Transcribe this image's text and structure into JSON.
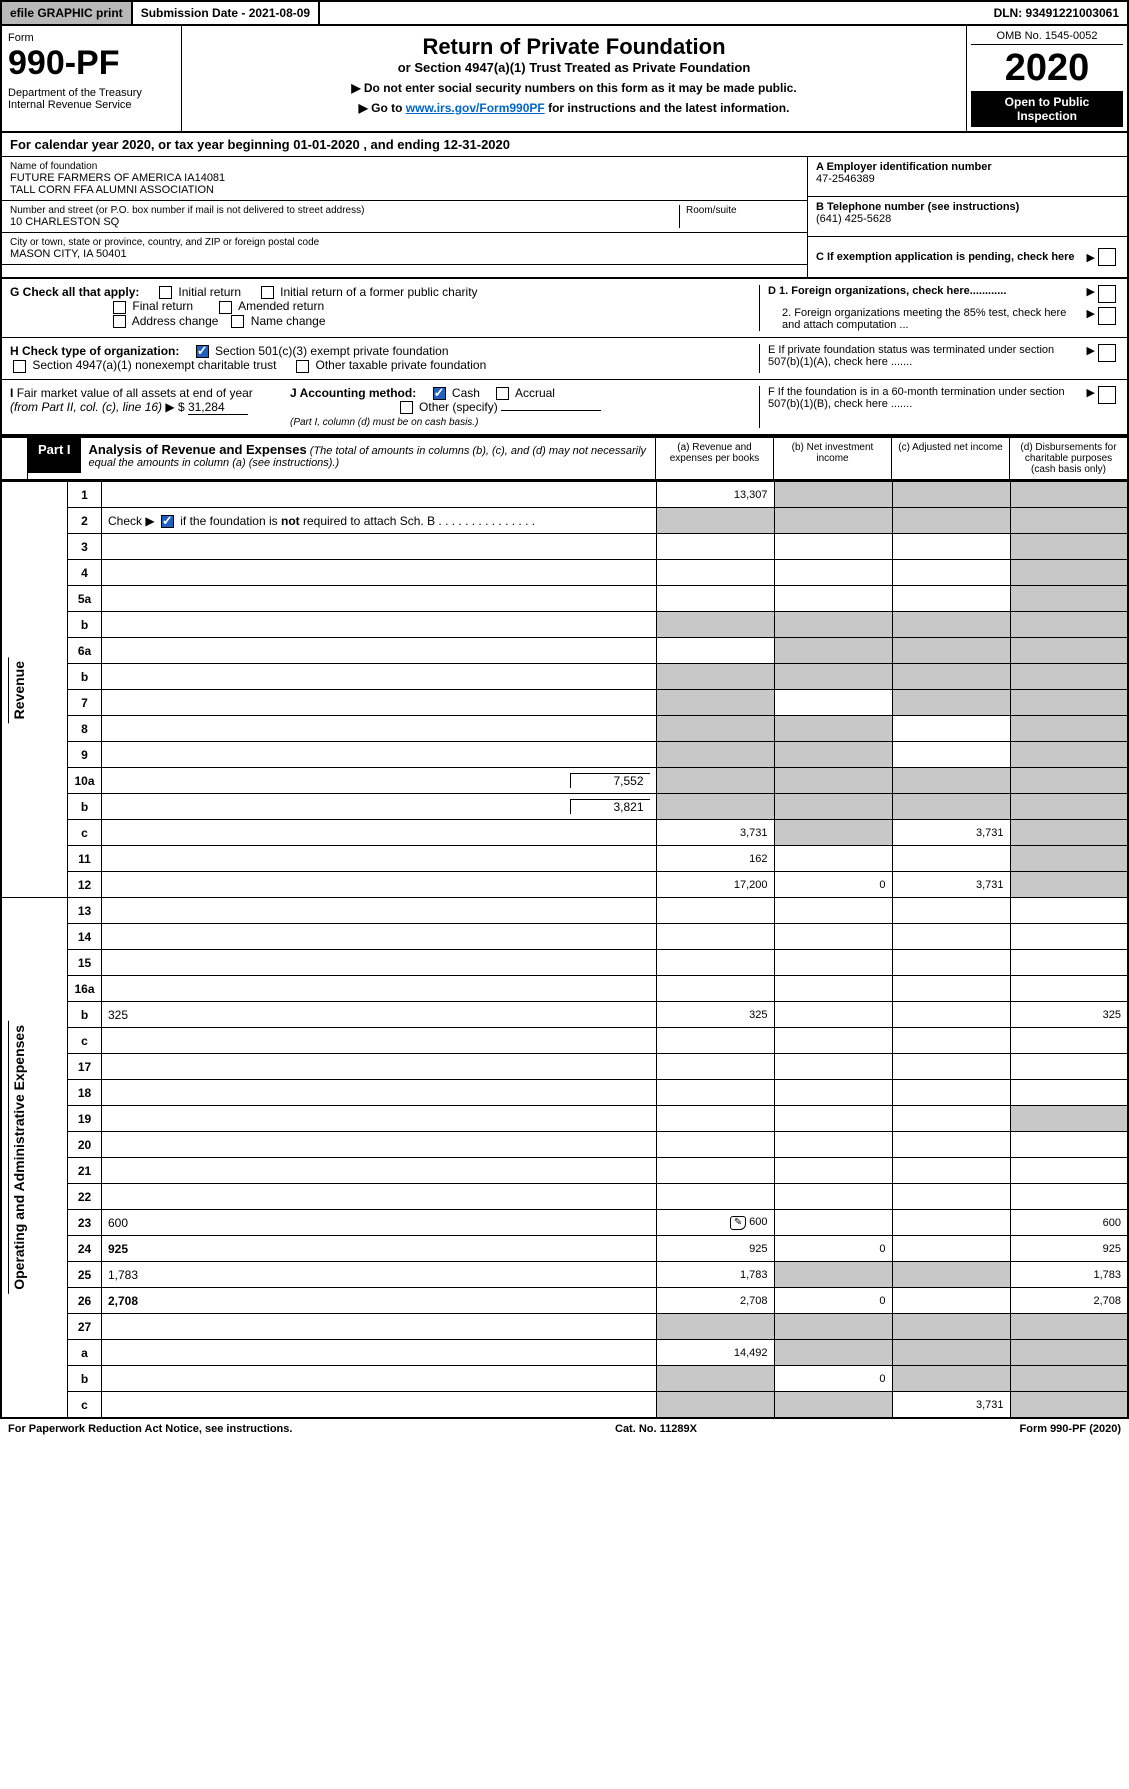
{
  "topbar": {
    "efile": "efile GRAPHIC print",
    "subdate_label": "Submission Date - 2021-08-09",
    "dln": "DLN: 93491221003061"
  },
  "header": {
    "form_label": "Form",
    "form_number": "990-PF",
    "dept": "Department of the Treasury\nInternal Revenue Service",
    "title": "Return of Private Foundation",
    "subtitle": "or Section 4947(a)(1) Trust Treated as Private Foundation",
    "note1": "▶ Do not enter social security numbers on this form as it may be made public.",
    "note2_pre": "▶ Go to ",
    "note2_link": "www.irs.gov/Form990PF",
    "note2_post": " for instructions and the latest information.",
    "omb": "OMB No. 1545-0052",
    "year": "2020",
    "open": "Open to Public Inspection"
  },
  "calyear": "For calendar year 2020, or tax year beginning 01-01-2020           , and ending 12-31-2020",
  "info": {
    "name_lbl": "Name of foundation",
    "name": "FUTURE FARMERS OF AMERICA IA14081\nTALL CORN FFA ALUMNI ASSOCIATION",
    "addr_lbl": "Number and street (or P.O. box number if mail is not delivered to street address)",
    "room_lbl": "Room/suite",
    "addr": "10 CHARLESTON SQ",
    "city_lbl": "City or town, state or province, country, and ZIP or foreign postal code",
    "city": "MASON CITY, IA  50401",
    "a_lbl": "A Employer identification number",
    "a_val": "47-2546389",
    "b_lbl": "B Telephone number (see instructions)",
    "b_val": "(641) 425-5628",
    "c_lbl": "C If exemption application is pending, check here",
    "d1": "D 1. Foreign organizations, check here............",
    "d2": "2. Foreign organizations meeting the 85% test, check here and attach computation ...",
    "e": "E  If private foundation status was terminated under section 507(b)(1)(A), check here .......",
    "f": "F  If the foundation is in a 60-month termination under section 507(b)(1)(B), check here ......."
  },
  "checks": {
    "g_lbl": "G Check all that apply:",
    "g_opts": [
      "Initial return",
      "Initial return of a former public charity",
      "Final return",
      "Amended return",
      "Address change",
      "Name change"
    ],
    "h_lbl": "H Check type of organization:",
    "h_opt1": "Section 501(c)(3) exempt private foundation",
    "h_opt2": "Section 4947(a)(1) nonexempt charitable trust",
    "h_opt3": "Other taxable private foundation",
    "i_lbl": "I Fair market value of all assets at end of year (from Part II, col. (c), line 16) ▶ $",
    "i_val": "31,284",
    "j_lbl": "J Accounting method:",
    "j_cash": "Cash",
    "j_accrual": "Accrual",
    "j_other": "Other (specify)",
    "j_note": "(Part I, column (d) must be on cash basis.)"
  },
  "part1": {
    "label": "Part I",
    "title": "Analysis of Revenue and Expenses",
    "title_note": "(The total of amounts in columns (b), (c), and (d) may not necessarily equal the amounts in column (a) (see instructions).)",
    "col_a": "(a)  Revenue and expenses per books",
    "col_b": "(b)  Net investment income",
    "col_c": "(c)  Adjusted net income",
    "col_d": "(d)  Disbursements for charitable purposes (cash basis only)"
  },
  "sections": {
    "revenue": "Revenue",
    "expenses": "Operating and Administrative Expenses"
  },
  "lines": [
    {
      "n": "1",
      "d": "",
      "a": "13,307",
      "b": "",
      "c": "",
      "shade_b": true,
      "shade_c": true,
      "shade_d": true
    },
    {
      "n": "2",
      "d": "",
      "a": "",
      "b": "",
      "c": "",
      "shade_all": true,
      "bold_not": true
    },
    {
      "n": "3",
      "d": "",
      "a": "",
      "b": "",
      "c": "",
      "shade_d": true
    },
    {
      "n": "4",
      "d": "",
      "a": "",
      "b": "",
      "c": "",
      "shade_d": true
    },
    {
      "n": "5a",
      "d": "",
      "a": "",
      "b": "",
      "c": "",
      "shade_d": true
    },
    {
      "n": "b",
      "d": "",
      "a": "",
      "b": "",
      "c": "",
      "shade_all": true
    },
    {
      "n": "6a",
      "d": "",
      "a": "",
      "b": "",
      "c": "",
      "shade_b": true,
      "shade_c": true,
      "shade_d": true
    },
    {
      "n": "b",
      "d": "",
      "a": "",
      "b": "",
      "c": "",
      "shade_all": true
    },
    {
      "n": "7",
      "d": "",
      "a": "",
      "b": "",
      "c": "",
      "shade_a": true,
      "shade_c": true,
      "shade_d": true
    },
    {
      "n": "8",
      "d": "",
      "a": "",
      "b": "",
      "c": "",
      "shade_a": true,
      "shade_b": true,
      "shade_d": true
    },
    {
      "n": "9",
      "d": "",
      "a": "",
      "b": "",
      "c": "",
      "shade_a": true,
      "shade_b": true,
      "shade_d": true
    },
    {
      "n": "10a",
      "d": "",
      "sub": "7,552",
      "a": "",
      "b": "",
      "c": "",
      "shade_all": true
    },
    {
      "n": "b",
      "d": "",
      "sub": "3,821",
      "a": "",
      "b": "",
      "c": "",
      "shade_all": true
    },
    {
      "n": "c",
      "d": "",
      "a": "3,731",
      "b": "",
      "c": "3,731",
      "shade_b": true,
      "shade_d": true
    },
    {
      "n": "11",
      "d": "",
      "a": "162",
      "b": "",
      "c": "",
      "shade_d": true
    },
    {
      "n": "12",
      "d": "",
      "a": "17,200",
      "b": "0",
      "c": "3,731",
      "shade_d": true,
      "bold": true
    }
  ],
  "exp_lines": [
    {
      "n": "13",
      "d": "",
      "a": "",
      "b": "",
      "c": ""
    },
    {
      "n": "14",
      "d": "",
      "a": "",
      "b": "",
      "c": ""
    },
    {
      "n": "15",
      "d": "",
      "a": "",
      "b": "",
      "c": ""
    },
    {
      "n": "16a",
      "d": "",
      "a": "",
      "b": "",
      "c": ""
    },
    {
      "n": "b",
      "d": "325",
      "a": "325",
      "b": "",
      "c": ""
    },
    {
      "n": "c",
      "d": "",
      "a": "",
      "b": "",
      "c": ""
    },
    {
      "n": "17",
      "d": "",
      "a": "",
      "b": "",
      "c": ""
    },
    {
      "n": "18",
      "d": "",
      "a": "",
      "b": "",
      "c": ""
    },
    {
      "n": "19",
      "d": "",
      "a": "",
      "b": "",
      "c": "",
      "shade_d": true
    },
    {
      "n": "20",
      "d": "",
      "a": "",
      "b": "",
      "c": ""
    },
    {
      "n": "21",
      "d": "",
      "a": "",
      "b": "",
      "c": ""
    },
    {
      "n": "22",
      "d": "",
      "a": "",
      "b": "",
      "c": ""
    },
    {
      "n": "23",
      "d": "600",
      "a": "600",
      "b": "",
      "c": "",
      "icon": true
    },
    {
      "n": "24",
      "d": "925",
      "a": "925",
      "b": "0",
      "c": "",
      "bold": true
    },
    {
      "n": "25",
      "d": "1,783",
      "a": "1,783",
      "b": "",
      "c": "",
      "shade_b": true,
      "shade_c": true
    },
    {
      "n": "26",
      "d": "2,708",
      "a": "2,708",
      "b": "0",
      "c": "",
      "bold": true
    },
    {
      "n": "27",
      "d": "",
      "a": "",
      "b": "",
      "c": "",
      "shade_all": true
    },
    {
      "n": "a",
      "d": "",
      "a": "14,492",
      "b": "",
      "c": "",
      "shade_b": true,
      "shade_c": true,
      "shade_d": true,
      "bold": true
    },
    {
      "n": "b",
      "d": "",
      "a": "",
      "b": "0",
      "c": "",
      "shade_a": true,
      "shade_c": true,
      "shade_d": true,
      "bold": true
    },
    {
      "n": "c",
      "d": "",
      "a": "",
      "b": "",
      "c": "3,731",
      "shade_a": true,
      "shade_b": true,
      "shade_d": true,
      "bold": true
    }
  ],
  "footer": {
    "left": "For Paperwork Reduction Act Notice, see instructions.",
    "mid": "Cat. No. 11289X",
    "right": "Form 990-PF (2020)"
  }
}
